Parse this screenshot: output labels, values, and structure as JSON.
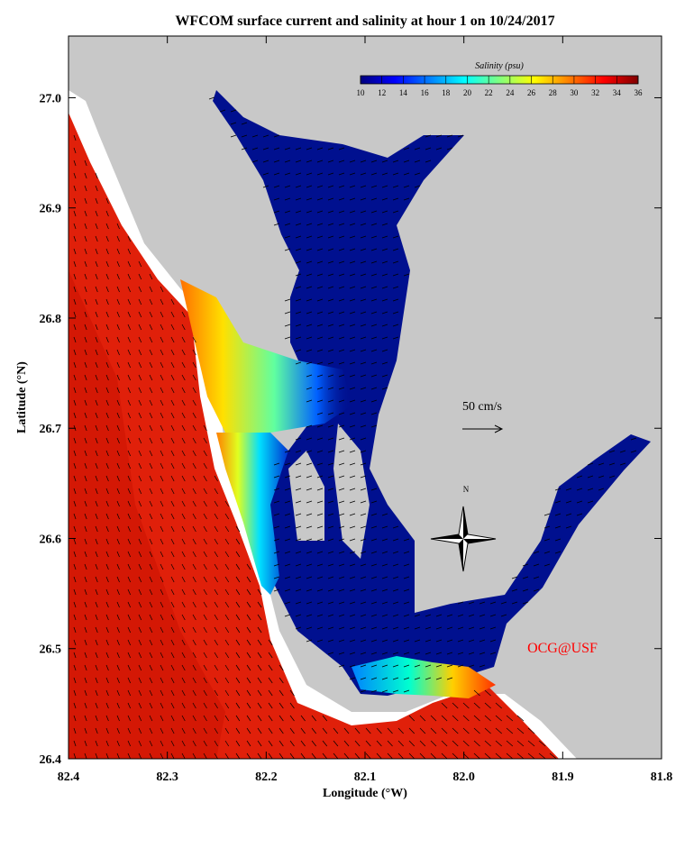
{
  "chart_data": {
    "type": "map",
    "title": "WFCOM surface current and salinity at hour 1 on 10/24/2017",
    "xlabel": "Longitude (°W)",
    "ylabel": "Latitude (°N)",
    "xlim": [
      82.4,
      81.8
    ],
    "ylim": [
      26.4,
      27.056
    ],
    "xticks": [
      82.4,
      82.3,
      82.2,
      82.1,
      {
        "value": 82,
        "label": "82.0"
      },
      81.9,
      81.8
    ],
    "yticks": [
      26.4,
      26.5,
      26.6,
      26.7,
      26.8,
      26.9,
      {
        "value": 27,
        "label": "27.0"
      }
    ],
    "colorbar": {
      "label": "Salinity (psu)",
      "lim": [
        10,
        36
      ],
      "ticks": [
        10,
        12,
        14,
        16,
        18,
        20,
        22,
        24,
        26,
        28,
        30,
        32,
        34,
        36
      ],
      "colors": [
        "#00007f",
        "#0000ff",
        "#0080ff",
        "#00ffff",
        "#80ff80",
        "#ffff00",
        "#ff8000",
        "#ff0000",
        "#7f0000"
      ]
    },
    "scale_label": "50 cm/s",
    "compass_label": "N",
    "credit": "OCG@USF",
    "land_color": "#c8c8c8",
    "ocean_color": "#e0200a",
    "estuary_color": "#00108f"
  }
}
